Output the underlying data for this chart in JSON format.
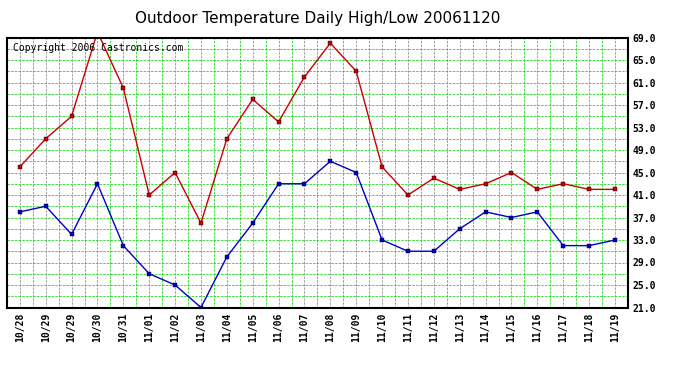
{
  "title": "Outdoor Temperature Daily High/Low 20061120",
  "copyright": "Copyright 2006 Castronics.com",
  "x_labels": [
    "10/28",
    "10/29",
    "10/29",
    "10/30",
    "10/31",
    "11/01",
    "11/02",
    "11/03",
    "11/04",
    "11/05",
    "11/06",
    "11/07",
    "11/08",
    "11/09",
    "11/10",
    "11/11",
    "11/12",
    "11/13",
    "11/14",
    "11/15",
    "11/16",
    "11/17",
    "11/18",
    "11/19"
  ],
  "high_temps": [
    46,
    51,
    55,
    70,
    60,
    41,
    45,
    36,
    51,
    58,
    54,
    62,
    68,
    63,
    46,
    41,
    44,
    42,
    43,
    45,
    42,
    43,
    42,
    42
  ],
  "low_temps": [
    38,
    39,
    34,
    43,
    32,
    27,
    25,
    21,
    30,
    36,
    43,
    43,
    47,
    45,
    33,
    31,
    31,
    35,
    38,
    37,
    38,
    32,
    32,
    33
  ],
  "high_color": "#cc0000",
  "low_color": "#0000cc",
  "bg_color": "#ffffff",
  "plot_bg_color": "#ffffff",
  "grid_h_color": "#00cc00",
  "grid_v_color": "#808080",
  "border_color": "#000000",
  "ylim_min": 21.0,
  "ylim_max": 69.0,
  "ytick_step": 4.0,
  "title_fontsize": 11,
  "copyright_fontsize": 7,
  "tick_fontsize": 7
}
